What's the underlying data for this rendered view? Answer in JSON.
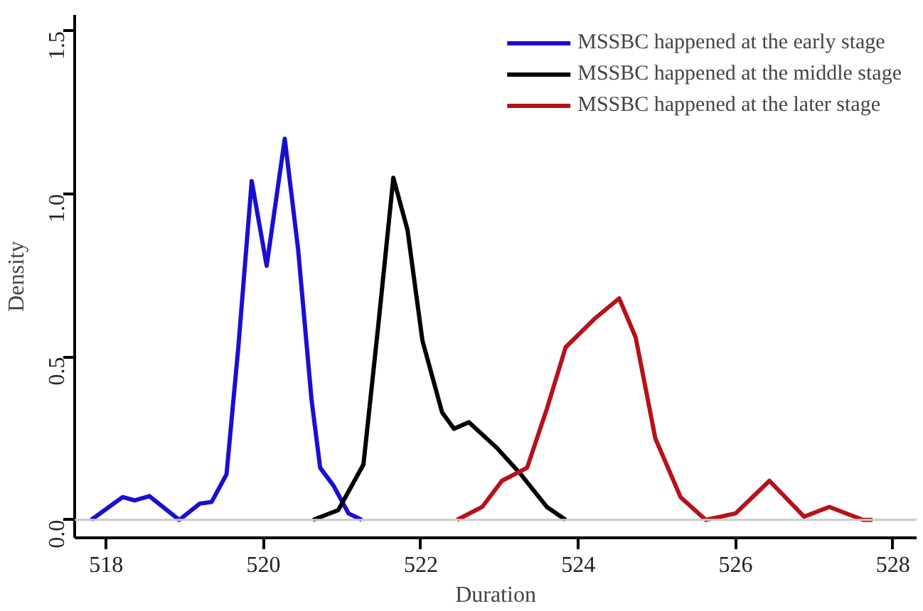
{
  "chart_data": {
    "type": "line",
    "xlabel": "Duration",
    "ylabel": "Density",
    "xlim": [
      517.6,
      528.3
    ],
    "ylim": [
      -0.055,
      1.55
    ],
    "xticks": [
      518,
      520,
      522,
      524,
      526,
      528
    ],
    "yticks": [
      {
        "value": 0,
        "label": "0.0"
      },
      0.5,
      {
        "value": 1,
        "label": "1.0"
      },
      1.5
    ],
    "grid": false,
    "legend": "top right",
    "marker": "none",
    "line_style": "solid",
    "ref_lines": [
      {
        "axis": "y",
        "value": 0,
        "color": "#c8c8c8"
      }
    ],
    "series": [
      {
        "name": "MSSBC happened at the early stage",
        "color": "#1a0fd0",
        "x": [
          517.81,
          518.21,
          518.36,
          518.55,
          518.93,
          519.19,
          519.34,
          519.53,
          519.68,
          519.85,
          520.04,
          520.27,
          520.44,
          520.61,
          520.72,
          520.89,
          521.08,
          521.25
        ],
        "values": [
          0,
          0.07,
          0.06,
          0.073,
          0.0,
          0.05,
          0.055,
          0.14,
          0.53,
          1.04,
          0.78,
          1.17,
          0.83,
          0.37,
          0.16,
          0.105,
          0.02,
          0
        ]
      },
      {
        "name": "MSSBC happened at the middle stage",
        "color": "#000000",
        "x": [
          520.63,
          520.95,
          521.27,
          521.46,
          521.65,
          521.83,
          522.02,
          522.27,
          522.42,
          522.61,
          522.97,
          523.27,
          523.6,
          523.84
        ],
        "values": [
          0,
          0.03,
          0.17,
          0.6,
          1.05,
          0.89,
          0.55,
          0.33,
          0.28,
          0.3,
          0.22,
          0.14,
          0.04,
          0
        ]
      },
      {
        "name": "MSSBC happened at the later stage",
        "color": "#b5121b",
        "x": [
          522.46,
          522.78,
          523.03,
          523.35,
          523.6,
          523.84,
          524.22,
          524.52,
          524.73,
          524.98,
          525.3,
          525.62,
          526.0,
          526.43,
          526.87,
          527.19,
          527.62,
          527.74
        ],
        "values": [
          0,
          0.04,
          0.12,
          0.16,
          0.34,
          0.53,
          0.62,
          0.68,
          0.56,
          0.25,
          0.07,
          0,
          0.02,
          0.12,
          0.01,
          0.04,
          0,
          0
        ]
      }
    ]
  }
}
